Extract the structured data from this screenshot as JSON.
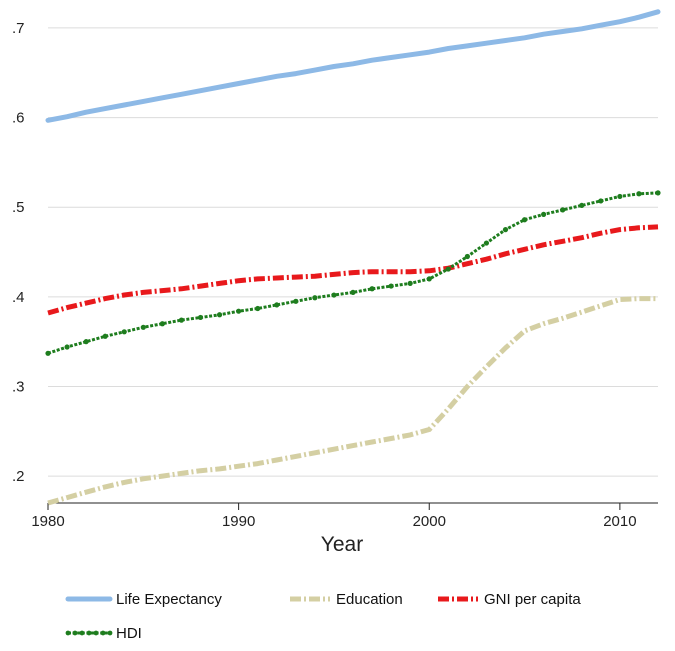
{
  "chart_data": {
    "type": "line",
    "title": "",
    "xlabel": "Year",
    "ylabel": "",
    "xlim": [
      1980,
      2012
    ],
    "ylim": [
      0.17,
      0.72
    ],
    "xticks": [
      1980,
      1990,
      2000,
      2010
    ],
    "xtick_labels": [
      "1980",
      "1990",
      "2000",
      "2010"
    ],
    "yticks": [
      0.2,
      0.3,
      0.4,
      0.5,
      0.6,
      0.7
    ],
    "ytick_labels": [
      ".2",
      ".3",
      ".4",
      ".5",
      ".6",
      ".7"
    ],
    "grid": "horizontal",
    "legend_position": "bottom",
    "x": [
      1980,
      1981,
      1982,
      1983,
      1984,
      1985,
      1986,
      1987,
      1988,
      1989,
      1990,
      1991,
      1992,
      1993,
      1994,
      1995,
      1996,
      1997,
      1998,
      1999,
      2000,
      2001,
      2002,
      2003,
      2004,
      2005,
      2006,
      2007,
      2008,
      2009,
      2010,
      2011,
      2012
    ],
    "series": [
      {
        "name": "Life Expectancy",
        "color": "#8db9e6",
        "style": "solid",
        "values": [
          0.597,
          0.601,
          0.606,
          0.61,
          0.614,
          0.618,
          0.622,
          0.626,
          0.63,
          0.634,
          0.638,
          0.642,
          0.646,
          0.649,
          0.653,
          0.657,
          0.66,
          0.664,
          0.667,
          0.67,
          0.673,
          0.677,
          0.68,
          0.683,
          0.686,
          0.689,
          0.693,
          0.696,
          0.699,
          0.703,
          0.707,
          0.712,
          0.718
        ]
      },
      {
        "name": "Education",
        "color": "#d4cfa3",
        "style": "dash-dot",
        "values": [
          0.17,
          0.176,
          0.182,
          0.188,
          0.193,
          0.197,
          0.2,
          0.203,
          0.206,
          0.208,
          0.211,
          0.214,
          0.218,
          0.222,
          0.226,
          0.23,
          0.234,
          0.238,
          0.242,
          0.246,
          0.252,
          0.275,
          0.3,
          0.322,
          0.343,
          0.362,
          0.37,
          0.376,
          0.383,
          0.39,
          0.397,
          0.398,
          0.398
        ]
      },
      {
        "name": "GNI per capita",
        "color": "#e8191c",
        "style": "dash-dot",
        "values": [
          0.382,
          0.388,
          0.393,
          0.398,
          0.402,
          0.405,
          0.407,
          0.409,
          0.412,
          0.415,
          0.418,
          0.42,
          0.421,
          0.422,
          0.423,
          0.425,
          0.427,
          0.428,
          0.428,
          0.428,
          0.429,
          0.432,
          0.437,
          0.442,
          0.448,
          0.453,
          0.458,
          0.462,
          0.466,
          0.471,
          0.475,
          0.477,
          0.478
        ]
      },
      {
        "name": "HDI",
        "color": "#1e7d1e",
        "style": "dotted-markers",
        "values": [
          0.337,
          0.344,
          0.35,
          0.356,
          0.361,
          0.366,
          0.37,
          0.374,
          0.377,
          0.38,
          0.384,
          0.387,
          0.391,
          0.395,
          0.399,
          0.402,
          0.405,
          0.409,
          0.412,
          0.415,
          0.42,
          0.431,
          0.445,
          0.46,
          0.475,
          0.486,
          0.492,
          0.497,
          0.502,
          0.507,
          0.512,
          0.515,
          0.516
        ]
      }
    ]
  }
}
